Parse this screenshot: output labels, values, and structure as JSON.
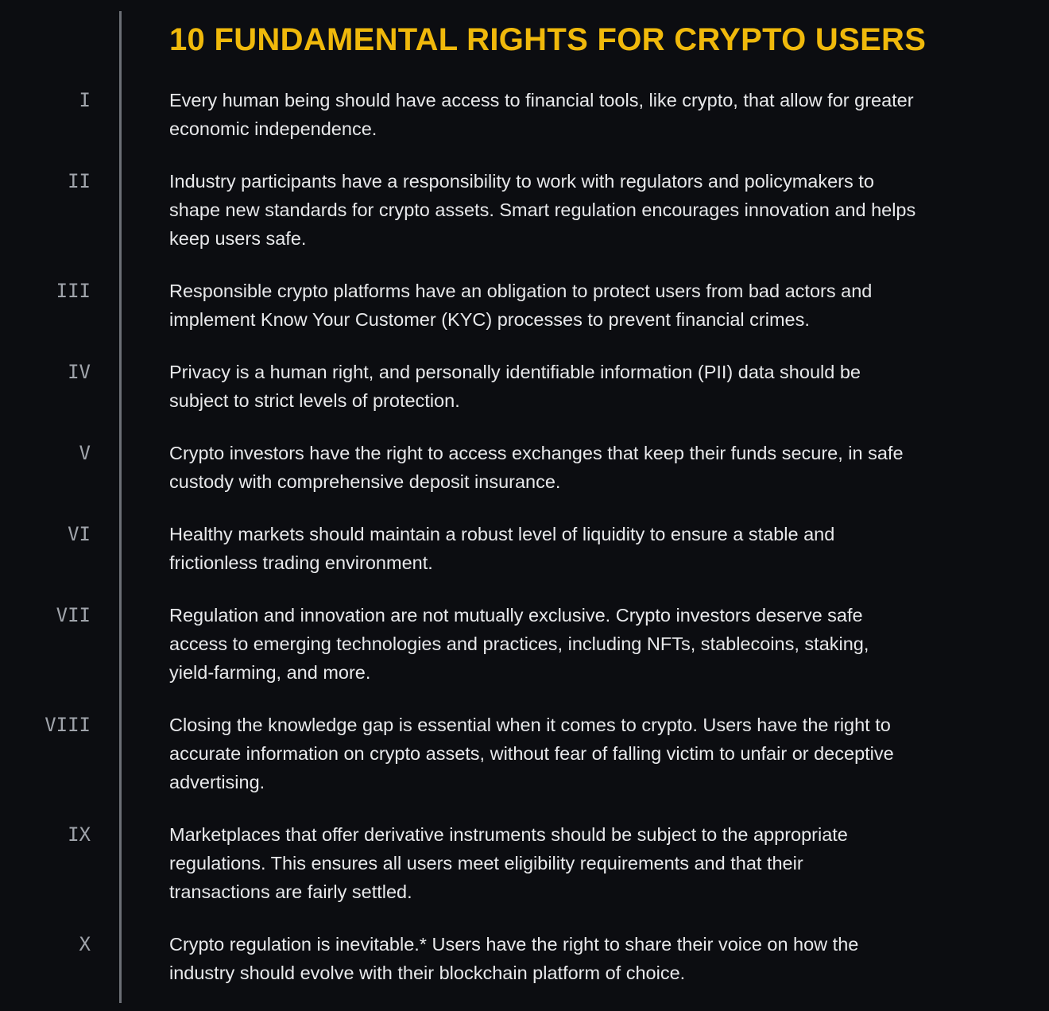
{
  "title": "10 FUNDAMENTAL RIGHTS FOR CRYPTO USERS",
  "colors": {
    "background": "#0c0d11",
    "title": "#f0b90b",
    "numeral": "#a0a4ab",
    "text": "#e8e9eb",
    "divider": "#6b6e75"
  },
  "rights": [
    {
      "numeral": "I",
      "lines": [
        "Every human being should have access to financial tools, like crypto, that allow for greater",
        "economic independence."
      ]
    },
    {
      "numeral": "II",
      "lines": [
        "Industry participants have a responsibility to work with regulators and policymakers to",
        "shape new standards for crypto assets. Smart regulation encourages innovation and helps",
        "keep users safe."
      ]
    },
    {
      "numeral": "III",
      "lines": [
        "Responsible crypto platforms have an obligation to protect users from bad actors and",
        "implement Know Your Customer (KYC) processes to prevent financial crimes."
      ]
    },
    {
      "numeral": "IV",
      "lines": [
        "Privacy is a human right, and personally identifiable information (PII) data should be",
        "subject to strict levels of protection."
      ]
    },
    {
      "numeral": "V",
      "lines": [
        "Crypto investors have the right to access exchanges that keep their funds secure, in safe",
        "custody with comprehensive deposit insurance."
      ]
    },
    {
      "numeral": "VI",
      "lines": [
        "Healthy markets should maintain a robust level of liquidity to ensure a stable and",
        "frictionless trading environment."
      ]
    },
    {
      "numeral": "VII",
      "lines": [
        "Regulation and innovation are not mutually exclusive. Crypto investors deserve safe",
        "access to emerging technologies and practices, including NFTs, stablecoins, staking,",
        "yield-farming, and more."
      ]
    },
    {
      "numeral": "VIII",
      "lines": [
        "Closing the knowledge gap is essential when it comes to crypto. Users have the right to",
        "accurate information on crypto assets, without fear of falling victim to unfair or deceptive",
        "advertising."
      ]
    },
    {
      "numeral": "IX",
      "lines": [
        "Marketplaces that offer derivative instruments should be subject to the appropriate",
        "regulations. This ensures all users meet eligibility requirements and that their",
        "transactions are fairly settled."
      ]
    },
    {
      "numeral": "X",
      "lines": [
        "Crypto regulation is inevitable.* Users have the right to share their voice on how the",
        "industry should evolve with their blockchain platform of choice."
      ]
    }
  ]
}
